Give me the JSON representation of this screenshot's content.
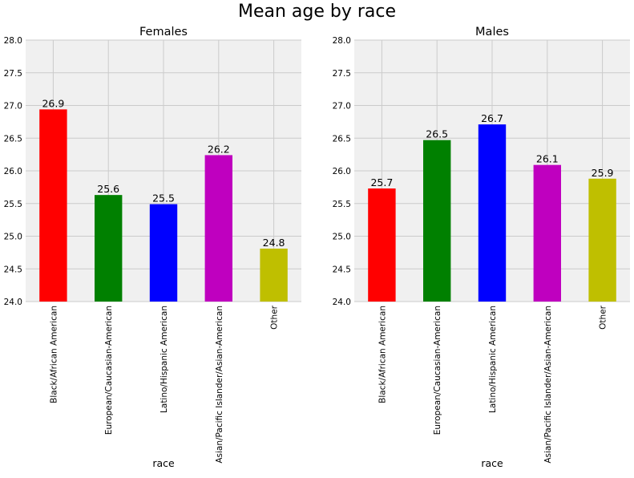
{
  "figure": {
    "title": "Mean age by race",
    "background": "#ffffff",
    "axes_background": "#f0f0f0",
    "grid_color": "#cbcbcb"
  },
  "chart_data": [
    {
      "type": "bar",
      "title": "Females",
      "xlabel": "race",
      "ylabel": "",
      "categories": [
        "Black/African American",
        "European/Caucasian-American",
        "Latino/Hispanic American",
        "Asian/Pacific Islander/Asian-American",
        "Other"
      ],
      "values": [
        26.94,
        25.63,
        25.49,
        26.24,
        24.81
      ],
      "data_labels": [
        "26.9",
        "25.6",
        "25.5",
        "26.2",
        "24.8"
      ],
      "colors": [
        "#ff0000",
        "#008000",
        "#0000ff",
        "#bf00bf",
        "#bfbf00"
      ],
      "ylim": [
        24.0,
        28.0
      ],
      "yticks": [
        "24.0",
        "24.5",
        "25.0",
        "25.5",
        "26.0",
        "26.5",
        "27.0",
        "27.5",
        "28.0"
      ],
      "grid": true
    },
    {
      "type": "bar",
      "title": "Males",
      "xlabel": "race",
      "ylabel": "",
      "categories": [
        "Black/African American",
        "European/Caucasian-American",
        "Latino/Hispanic American",
        "Asian/Pacific Islander/Asian-American",
        "Other"
      ],
      "values": [
        25.73,
        26.47,
        26.71,
        26.09,
        25.88
      ],
      "data_labels": [
        "25.7",
        "26.5",
        "26.7",
        "26.1",
        "25.9"
      ],
      "colors": [
        "#ff0000",
        "#008000",
        "#0000ff",
        "#bf00bf",
        "#bfbf00"
      ],
      "ylim": [
        24.0,
        28.0
      ],
      "yticks": [
        "24.0",
        "24.5",
        "25.0",
        "25.5",
        "26.0",
        "26.5",
        "27.0",
        "27.5",
        "28.0"
      ],
      "grid": true
    }
  ]
}
